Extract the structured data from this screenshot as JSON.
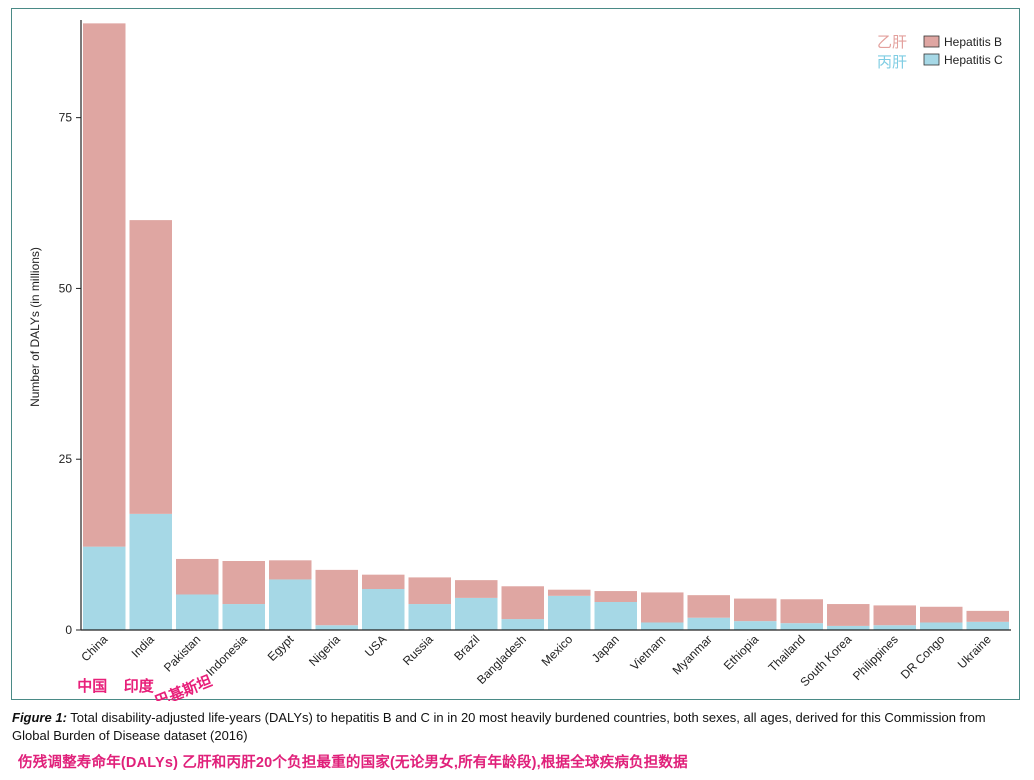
{
  "chart_data": {
    "type": "bar",
    "stacked": true,
    "categories": [
      "China",
      "India",
      "Pakistan",
      "Indonesia",
      "Egypt",
      "Nigeria",
      "USA",
      "Russia",
      "Brazil",
      "Bangladesh",
      "Mexico",
      "Japan",
      "Vietnam",
      "Myanmar",
      "Ethiopia",
      "Thailand",
      "South Korea",
      "Philippines",
      "DR Congo",
      "Ukraine"
    ],
    "series": [
      {
        "name": "Hepatitis C",
        "color": "#a6d8e6",
        "values": [
          12.2,
          17.0,
          5.2,
          3.8,
          7.4,
          0.7,
          6.0,
          3.8,
          4.7,
          1.6,
          5.0,
          4.1,
          1.1,
          1.8,
          1.3,
          1.0,
          0.6,
          0.7,
          1.1,
          1.2
        ]
      },
      {
        "name": "Hepatitis B",
        "color": "#dfa6a2",
        "values": [
          76.6,
          43.0,
          5.2,
          6.3,
          2.8,
          8.1,
          2.1,
          3.9,
          2.6,
          4.8,
          0.9,
          1.6,
          4.4,
          3.3,
          3.3,
          3.5,
          3.2,
          2.9,
          2.3,
          1.6
        ]
      }
    ],
    "ylabel": "Number of DALYs (in millions)",
    "yticks": [
      0,
      25,
      50,
      75
    ],
    "ylim": [
      0,
      89
    ],
    "legend_position": "top-right",
    "grid": false
  },
  "legend": {
    "hep_b_label": "Hepatitis B",
    "hep_c_label": "Hepatitis C",
    "hep_b_cn": "乙肝",
    "hep_c_cn": "丙肝"
  },
  "annotations": {
    "china_cn": "中国",
    "india_cn": "印度",
    "pakistan_cn": "巴基斯坦",
    "color": "#e8207a"
  },
  "caption": {
    "label": "Figure 1:",
    "text": "Total disability-adjusted life-years (DALYs) to hepatitis B and C in in 20 most heavily burdened countries, both sexes, all ages, derived for this Commission from Global Burden of Disease dataset (2016)",
    "chinese": "伤残调整寿命年(DALYs) 乙肝和丙肝20个负担最重的国家(无论男女,所有年龄段),根据全球疾病负担数据"
  }
}
